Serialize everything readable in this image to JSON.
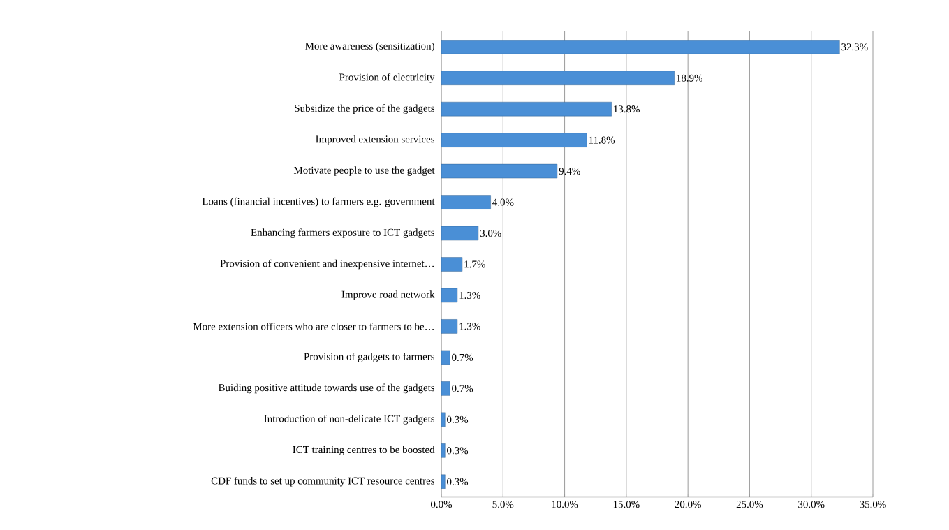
{
  "chart_data": {
    "type": "bar",
    "orientation": "horizontal",
    "categories": [
      "More awareness (sensitization)",
      "Provision of electricity",
      "Subsidize the price of the gadgets",
      "Improved extension services",
      "Motivate people to use the gadget",
      "Loans (financial incentives) to farmers e.g. government",
      "Enhancing farmers exposure to ICT gadgets",
      "Provision of convenient and inexpensive internet…",
      "Improve road network",
      "More extension officers who are closer to farmers to be…",
      "Provision of gadgets to farmers",
      "Buiding positive attitude towards use of the gadgets",
      "Introduction of non-delicate ICT gadgets",
      "ICT training centres to be boosted",
      "CDF funds to set up community ICT resource centres"
    ],
    "values": [
      32.3,
      18.9,
      13.8,
      11.8,
      9.4,
      4.0,
      3.0,
      1.7,
      1.3,
      1.3,
      0.7,
      0.7,
      0.3,
      0.3,
      0.3
    ],
    "value_labels": [
      "32.3%",
      "18.9%",
      "13.8%",
      "11.8%",
      "9.4%",
      "4.0%",
      "3.0%",
      "1.7%",
      "1.3%",
      "1.3%",
      "0.7%",
      "0.7%",
      "0.3%",
      "0.3%",
      "0.3%"
    ],
    "color": "#4a8fd6",
    "xlim": [
      0,
      35
    ],
    "xticks": [
      {
        "value": 0,
        "label": "0.0%"
      },
      {
        "value": 5,
        "label": "5.0%"
      },
      {
        "value": 10,
        "label": "10.0%"
      },
      {
        "value": 15,
        "label": "15.0%"
      },
      {
        "value": 20,
        "label": "20.0%"
      },
      {
        "value": 25,
        "label": "25.0%"
      },
      {
        "value": 30,
        "label": "30.0%"
      },
      {
        "value": 35,
        "label": "35.0%"
      }
    ],
    "grid": "x"
  }
}
